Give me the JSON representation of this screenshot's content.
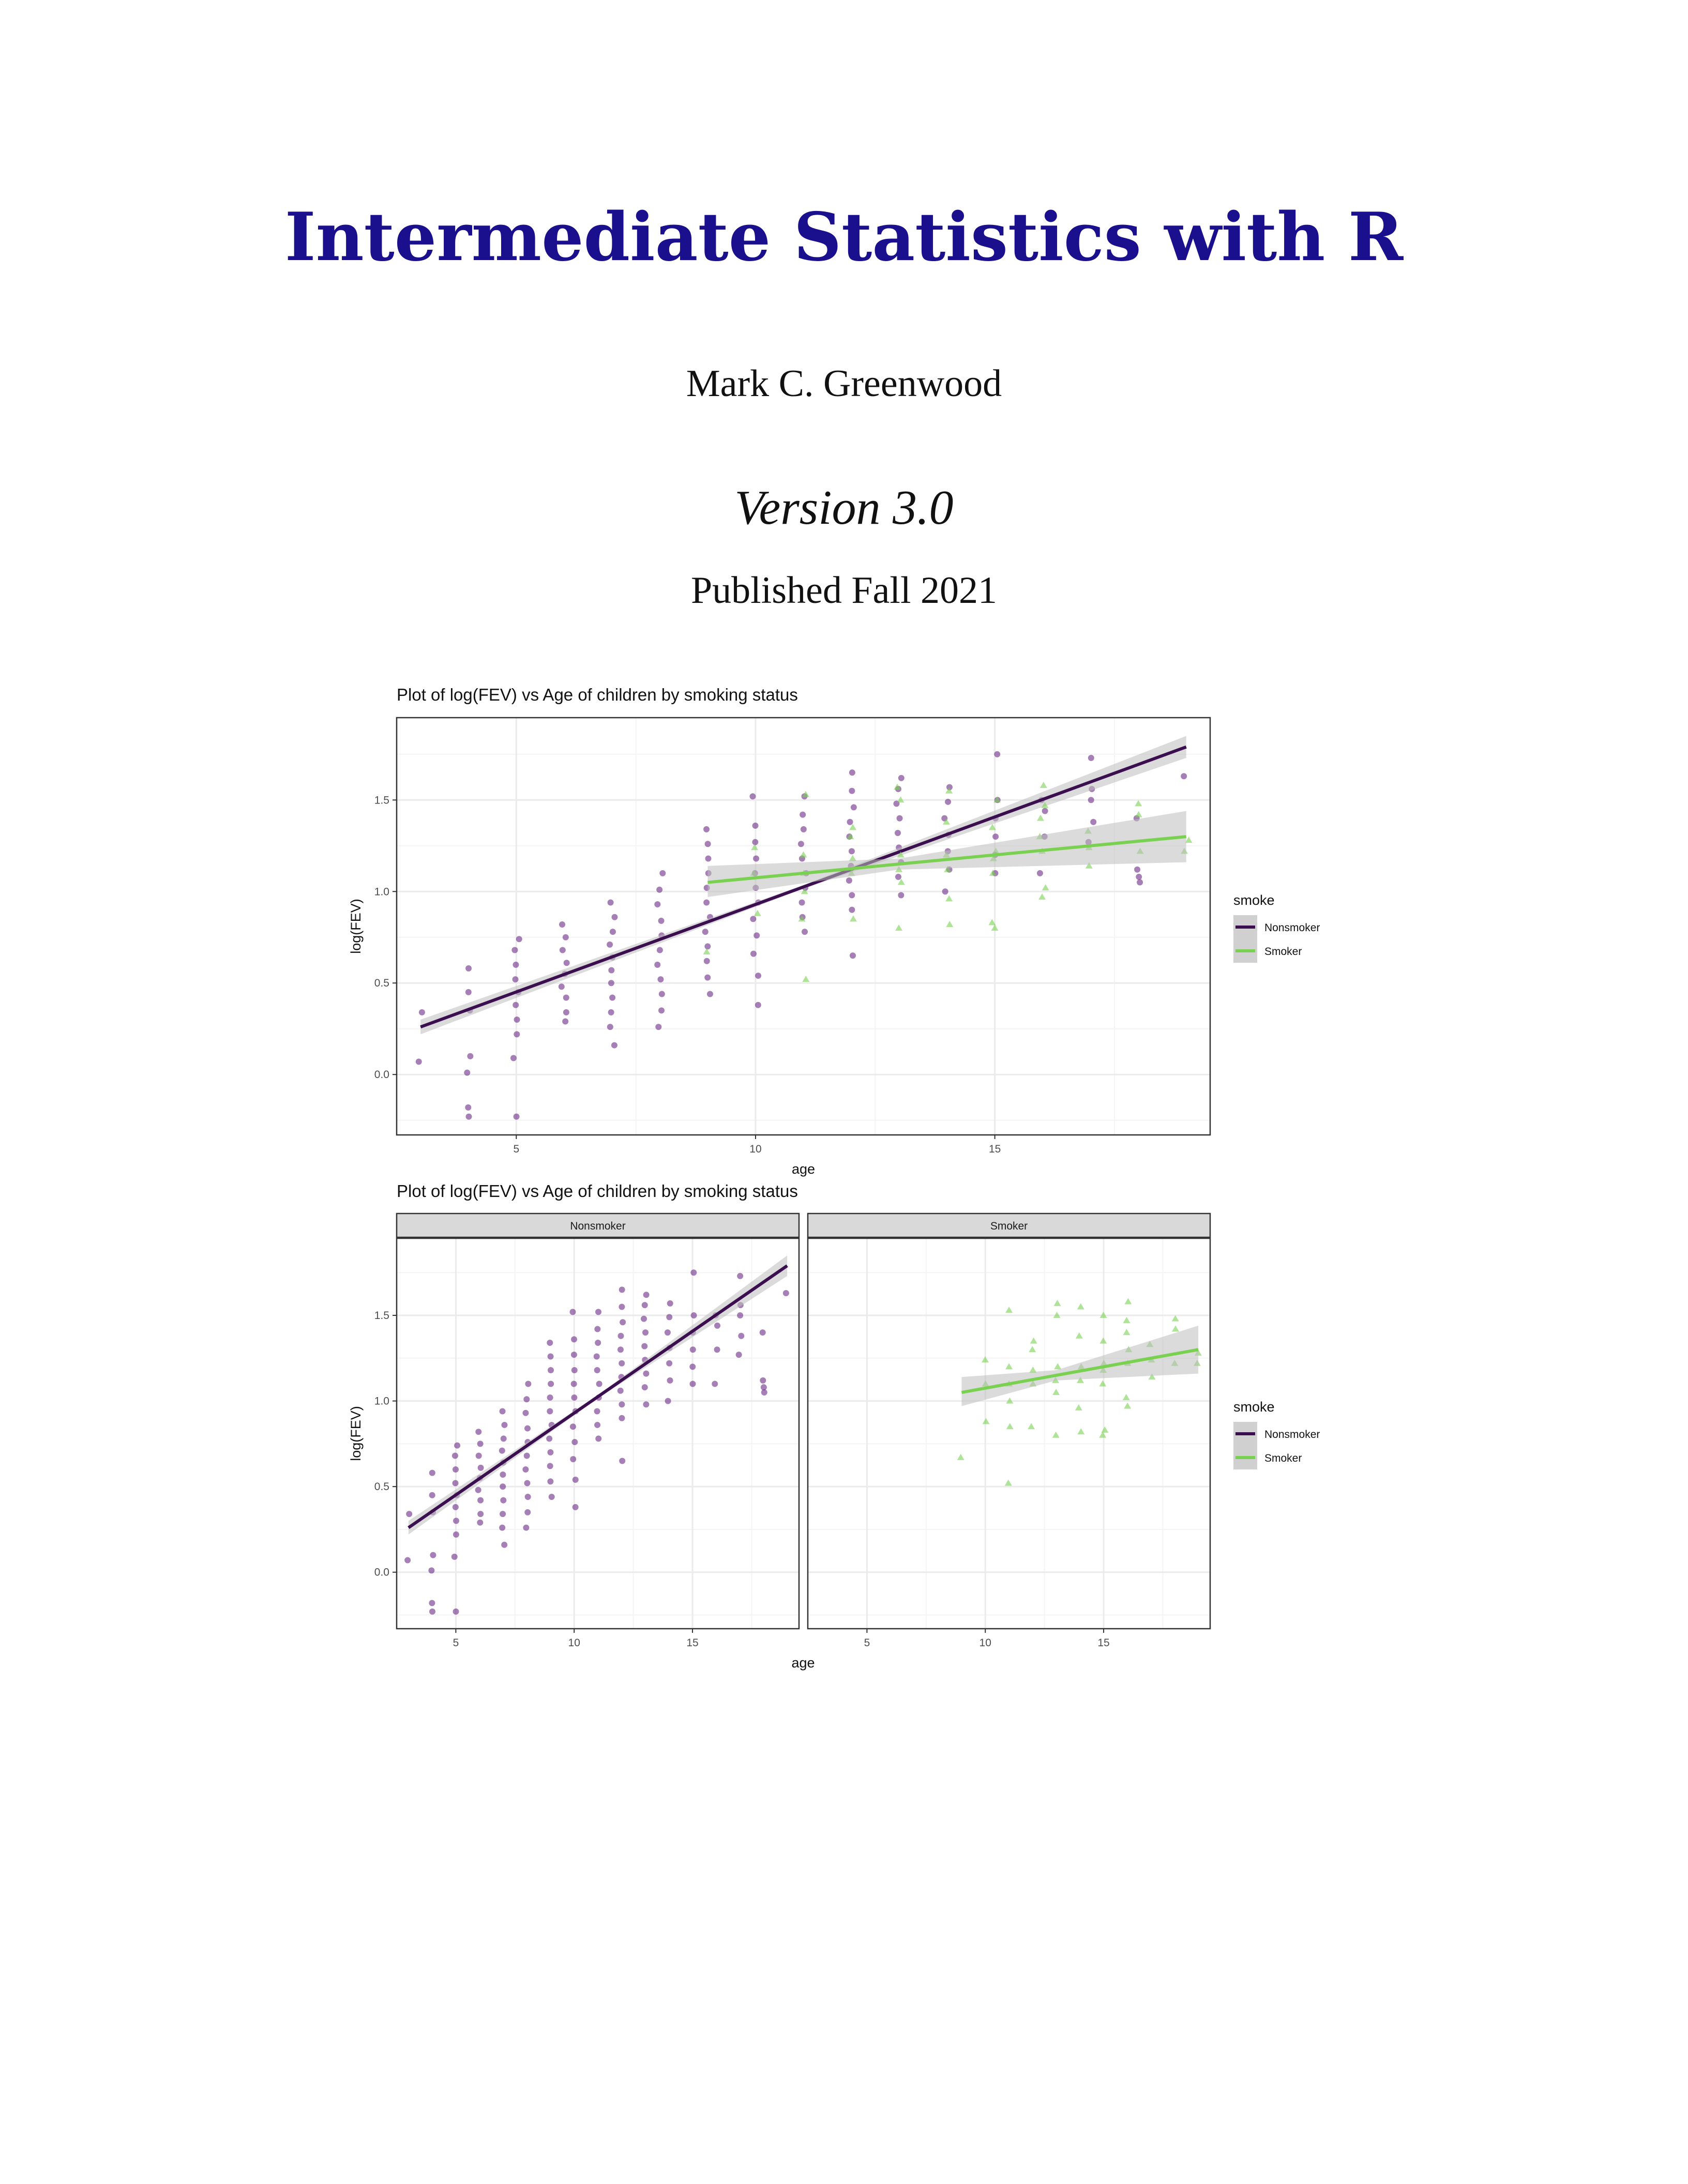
{
  "cover": {
    "title": "Intermediate Statistics with R",
    "author": "Mark C. Greenwood",
    "version": "Version 3.0",
    "published": "Published Fall 2021"
  },
  "colors": {
    "title": "#1a0f8c",
    "nonsmoker": "#3b0f4f",
    "nonsmoker_points": "#6a2a86",
    "smoker": "#7ad151",
    "ribbon": "#bdbdbd",
    "grid": "#ebebeb"
  },
  "chart_data": [
    {
      "type": "scatter",
      "title": "Plot of log(FEV) vs Age of children by smoking  status",
      "xlabel": "age",
      "ylabel": "log(FEV)",
      "xlim": [
        2.5,
        19.5
      ],
      "ylim": [
        -0.33,
        1.95
      ],
      "xticks": [
        5,
        10,
        15
      ],
      "yticks": [
        0.0,
        0.5,
        1.0,
        1.5
      ],
      "grid": true,
      "legend": {
        "title": "smoke",
        "placement": "right",
        "items": [
          "Nonsmoker",
          "Smoker"
        ]
      },
      "series": [
        {
          "name": "Nonsmoker",
          "points": [
            [
              3,
              0.07
            ],
            [
              3,
              0.34
            ],
            [
              4,
              -0.23
            ],
            [
              4,
              -0.18
            ],
            [
              4,
              0.01
            ],
            [
              4,
              0.1
            ],
            [
              4,
              0.35
            ],
            [
              4,
              0.45
            ],
            [
              4,
              0.58
            ],
            [
              5,
              -0.23
            ],
            [
              5,
              0.09
            ],
            [
              5,
              0.22
            ],
            [
              5,
              0.3
            ],
            [
              5,
              0.38
            ],
            [
              5,
              0.45
            ],
            [
              5,
              0.52
            ],
            [
              5,
              0.6
            ],
            [
              5,
              0.68
            ],
            [
              5,
              0.74
            ],
            [
              6,
              0.29
            ],
            [
              6,
              0.34
            ],
            [
              6,
              0.42
            ],
            [
              6,
              0.48
            ],
            [
              6,
              0.55
            ],
            [
              6,
              0.61
            ],
            [
              6,
              0.68
            ],
            [
              6,
              0.75
            ],
            [
              6,
              0.82
            ],
            [
              7,
              0.16
            ],
            [
              7,
              0.26
            ],
            [
              7,
              0.34
            ],
            [
              7,
              0.42
            ],
            [
              7,
              0.5
            ],
            [
              7,
              0.57
            ],
            [
              7,
              0.64
            ],
            [
              7,
              0.71
            ],
            [
              7,
              0.78
            ],
            [
              7,
              0.86
            ],
            [
              7,
              0.94
            ],
            [
              8,
              0.26
            ],
            [
              8,
              0.35
            ],
            [
              8,
              0.44
            ],
            [
              8,
              0.52
            ],
            [
              8,
              0.6
            ],
            [
              8,
              0.68
            ],
            [
              8,
              0.76
            ],
            [
              8,
              0.84
            ],
            [
              8,
              0.93
            ],
            [
              8,
              1.01
            ],
            [
              8,
              1.1
            ],
            [
              9,
              0.44
            ],
            [
              9,
              0.53
            ],
            [
              9,
              0.62
            ],
            [
              9,
              0.7
            ],
            [
              9,
              0.78
            ],
            [
              9,
              0.86
            ],
            [
              9,
              0.94
            ],
            [
              9,
              1.02
            ],
            [
              9,
              1.1
            ],
            [
              9,
              1.18
            ],
            [
              9,
              1.26
            ],
            [
              9,
              1.34
            ],
            [
              10,
              0.38
            ],
            [
              10,
              0.54
            ],
            [
              10,
              0.66
            ],
            [
              10,
              0.76
            ],
            [
              10,
              0.85
            ],
            [
              10,
              0.94
            ],
            [
              10,
              1.02
            ],
            [
              10,
              1.1
            ],
            [
              10,
              1.18
            ],
            [
              10,
              1.27
            ],
            [
              10,
              1.36
            ],
            [
              10,
              1.52
            ],
            [
              11,
              0.78
            ],
            [
              11,
              0.86
            ],
            [
              11,
              0.94
            ],
            [
              11,
              1.02
            ],
            [
              11,
              1.1
            ],
            [
              11,
              1.18
            ],
            [
              11,
              1.26
            ],
            [
              11,
              1.34
            ],
            [
              11,
              1.42
            ],
            [
              11,
              1.52
            ],
            [
              12,
              0.65
            ],
            [
              12,
              0.9
            ],
            [
              12,
              0.98
            ],
            [
              12,
              1.06
            ],
            [
              12,
              1.14
            ],
            [
              12,
              1.22
            ],
            [
              12,
              1.3
            ],
            [
              12,
              1.38
            ],
            [
              12,
              1.46
            ],
            [
              12,
              1.55
            ],
            [
              12,
              1.65
            ],
            [
              13,
              0.98
            ],
            [
              13,
              1.08
            ],
            [
              13,
              1.16
            ],
            [
              13,
              1.24
            ],
            [
              13,
              1.32
            ],
            [
              13,
              1.4
            ],
            [
              13,
              1.48
            ],
            [
              13,
              1.56
            ],
            [
              13,
              1.62
            ],
            [
              14,
              1.0
            ],
            [
              14,
              1.12
            ],
            [
              14,
              1.22
            ],
            [
              14,
              1.31
            ],
            [
              14,
              1.4
            ],
            [
              14,
              1.49
            ],
            [
              14,
              1.57
            ],
            [
              15,
              1.1
            ],
            [
              15,
              1.2
            ],
            [
              15,
              1.3
            ],
            [
              15,
              1.4
            ],
            [
              15,
              1.5
            ],
            [
              15,
              1.75
            ],
            [
              16,
              1.1
            ],
            [
              16,
              1.3
            ],
            [
              16,
              1.44
            ],
            [
              16,
              1.5
            ],
            [
              17,
              1.27
            ],
            [
              17,
              1.38
            ],
            [
              17,
              1.5
            ],
            [
              17,
              1.56
            ],
            [
              17,
              1.73
            ],
            [
              18,
              1.05
            ],
            [
              18,
              1.08
            ],
            [
              18,
              1.12
            ],
            [
              18,
              1.4
            ],
            [
              19,
              1.63
            ]
          ],
          "fit": {
            "x": [
              3,
              19
            ],
            "y": [
              0.26,
              1.79
            ],
            "ribbon": [
              [
                3,
                0.22,
                0.3
              ],
              [
                11,
                1.015,
                1.035
              ],
              [
                19,
                1.73,
                1.85
              ]
            ]
          }
        },
        {
          "name": "Smoker",
          "points": [
            [
              9,
              0.67
            ],
            [
              10,
              0.88
            ],
            [
              10,
              1.1
            ],
            [
              10,
              1.24
            ],
            [
              11,
              0.52
            ],
            [
              11,
              0.85
            ],
            [
              11,
              1.0
            ],
            [
              11,
              1.1
            ],
            [
              11,
              1.2
            ],
            [
              11,
              1.53
            ],
            [
              12,
              0.85
            ],
            [
              12,
              1.1
            ],
            [
              12,
              1.18
            ],
            [
              12,
              1.3
            ],
            [
              12,
              1.35
            ],
            [
              13,
              0.8
            ],
            [
              13,
              1.05
            ],
            [
              13,
              1.12
            ],
            [
              13,
              1.2
            ],
            [
              13,
              1.5
            ],
            [
              13,
              1.57
            ],
            [
              14,
              0.82
            ],
            [
              14,
              0.96
            ],
            [
              14,
              1.12
            ],
            [
              14,
              1.2
            ],
            [
              14,
              1.38
            ],
            [
              14,
              1.55
            ],
            [
              15,
              0.8
            ],
            [
              15,
              0.83
            ],
            [
              15,
              1.1
            ],
            [
              15,
              1.18
            ],
            [
              15,
              1.22
            ],
            [
              15,
              1.35
            ],
            [
              15,
              1.5
            ],
            [
              16,
              0.97
            ],
            [
              16,
              1.02
            ],
            [
              16,
              1.22
            ],
            [
              16,
              1.3
            ],
            [
              16,
              1.4
            ],
            [
              16,
              1.47
            ],
            [
              16,
              1.58
            ],
            [
              17,
              1.14
            ],
            [
              17,
              1.24
            ],
            [
              17,
              1.33
            ],
            [
              18,
              1.22
            ],
            [
              18,
              1.42
            ],
            [
              18,
              1.48
            ],
            [
              19,
              1.22
            ],
            [
              19,
              1.28
            ]
          ],
          "fit": {
            "x": [
              9,
              19
            ],
            "y": [
              1.05,
              1.3
            ],
            "ribbon": [
              [
                9,
                0.97,
                1.14
              ],
              [
                13,
                1.12,
                1.18
              ],
              [
                19,
                1.16,
                1.44
              ]
            ]
          }
        }
      ]
    },
    {
      "type": "scatter",
      "title": "Plot of log(FEV) vs Age of children by smoking  status",
      "xlabel": "age",
      "ylabel": "log(FEV)",
      "facets": [
        "Nonsmoker",
        "Smoker"
      ],
      "xlim": [
        2.5,
        19.5
      ],
      "ylim": [
        -0.33,
        1.95
      ],
      "xticks": [
        5,
        10,
        15
      ],
      "yticks": [
        0.0,
        0.5,
        1.0,
        1.5
      ],
      "grid": true,
      "legend": {
        "title": "smoke",
        "placement": "right",
        "items": [
          "Nonsmoker",
          "Smoker"
        ]
      }
    }
  ]
}
